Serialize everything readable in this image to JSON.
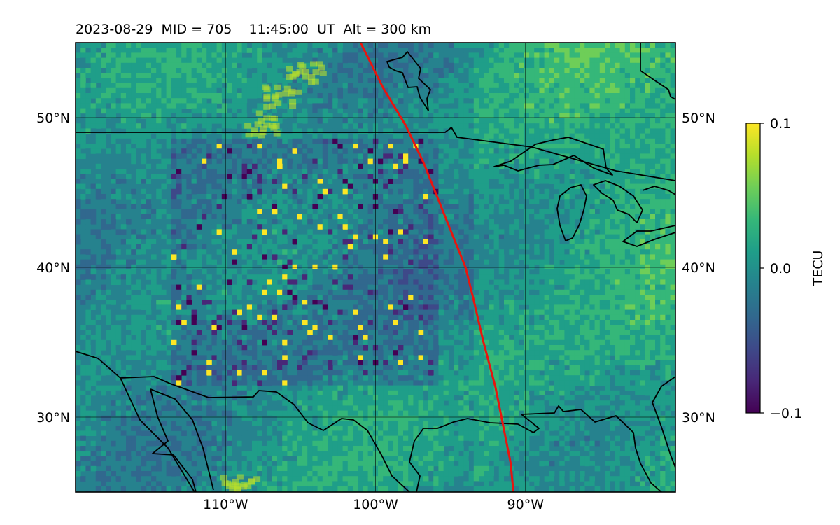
{
  "map": {
    "title": "2023-08-29  MID = 705    11:45:00  UT  Alt = 300 km",
    "lat_labels": [
      {
        "value": 50,
        "text": "50°N"
      },
      {
        "value": 40,
        "text": "40°N"
      },
      {
        "value": 30,
        "text": "30°N"
      }
    ],
    "lon_labels": [
      {
        "value": -110,
        "text": "110°W"
      },
      {
        "value": -100,
        "text": "100°W"
      },
      {
        "value": -90,
        "text": "90°W"
      }
    ],
    "extent": {
      "lon_min": -120,
      "lon_max": -80,
      "lat_min": 25,
      "lat_max": 55
    },
    "terminator_color": "#e8150f",
    "terminator": [
      [
        -101,
        55
      ],
      [
        -99.5,
        52
      ],
      [
        -98,
        49.5
      ],
      [
        -96.8,
        47
      ],
      [
        -95.8,
        44.5
      ],
      [
        -94.8,
        42
      ],
      [
        -94,
        40
      ],
      [
        -93.5,
        38
      ],
      [
        -92.8,
        35
      ],
      [
        -92,
        32
      ],
      [
        -91.5,
        29.5
      ],
      [
        -91,
        27
      ],
      [
        -90.8,
        25
      ]
    ]
  },
  "colorbar": {
    "label": "TECU",
    "ticks": [
      {
        "value": 0.1,
        "text": "0.1"
      },
      {
        "value": 0.0,
        "text": "0.0"
      },
      {
        "value": -0.1,
        "text": "−0.1"
      }
    ],
    "colors": [
      "#fde725",
      "#b5de2b",
      "#6ece58",
      "#35b779",
      "#1f9e89",
      "#26828e",
      "#31688e",
      "#3e4989",
      "#482878",
      "#440154"
    ]
  }
}
